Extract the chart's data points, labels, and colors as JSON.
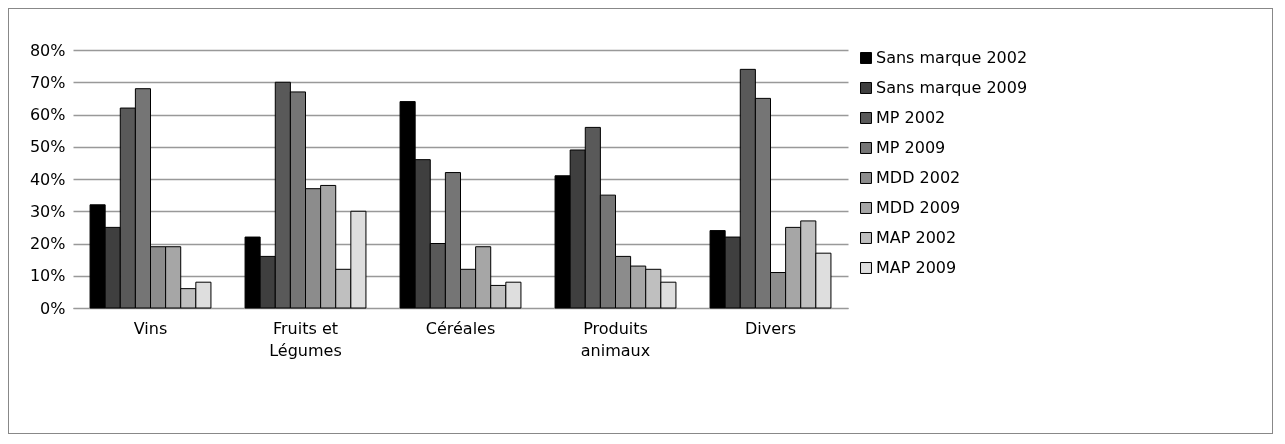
{
  "chart_data": {
    "type": "bar",
    "categories": [
      "Vins",
      "Fruits et Légumes",
      "Céréales",
      "Produits animaux",
      "Divers"
    ],
    "series": [
      {
        "name": "Sans marque 2002",
        "color": "#000000",
        "values": [
          32,
          22,
          64,
          41,
          24
        ]
      },
      {
        "name": "Sans marque 2009",
        "color": "#3f3f3f",
        "values": [
          25,
          16,
          46,
          49,
          22
        ]
      },
      {
        "name": "MP 2002",
        "color": "#595959",
        "values": [
          62,
          70,
          20,
          56,
          74
        ]
      },
      {
        "name": "MP 2009",
        "color": "#757575",
        "values": [
          68,
          67,
          42,
          35,
          65
        ]
      },
      {
        "name": "MDD 2002",
        "color": "#8c8c8c",
        "values": [
          19,
          37,
          12,
          16,
          11
        ]
      },
      {
        "name": "MDD 2009",
        "color": "#a6a6a6",
        "values": [
          19,
          38,
          19,
          13,
          25
        ]
      },
      {
        "name": "MAP 2002",
        "color": "#bfbfbf",
        "values": [
          6,
          12,
          7,
          12,
          27
        ]
      },
      {
        "name": "MAP 2009",
        "color": "#dedede",
        "values": [
          8,
          30,
          8,
          8,
          17
        ]
      }
    ],
    "ylim": [
      0,
      80
    ],
    "yticks": [
      {
        "value": 0,
        "label": "0%"
      },
      {
        "value": 10,
        "label": "10%"
      },
      {
        "value": 20,
        "label": "20%"
      },
      {
        "value": 30,
        "label": "30%"
      },
      {
        "value": 40,
        "label": "40%"
      },
      {
        "value": 50,
        "label": "50%"
      },
      {
        "value": 60,
        "label": "60%"
      },
      {
        "value": 70,
        "label": "70%"
      },
      {
        "value": 80,
        "label": "80%"
      }
    ],
    "grid": "y",
    "legend": "right"
  }
}
